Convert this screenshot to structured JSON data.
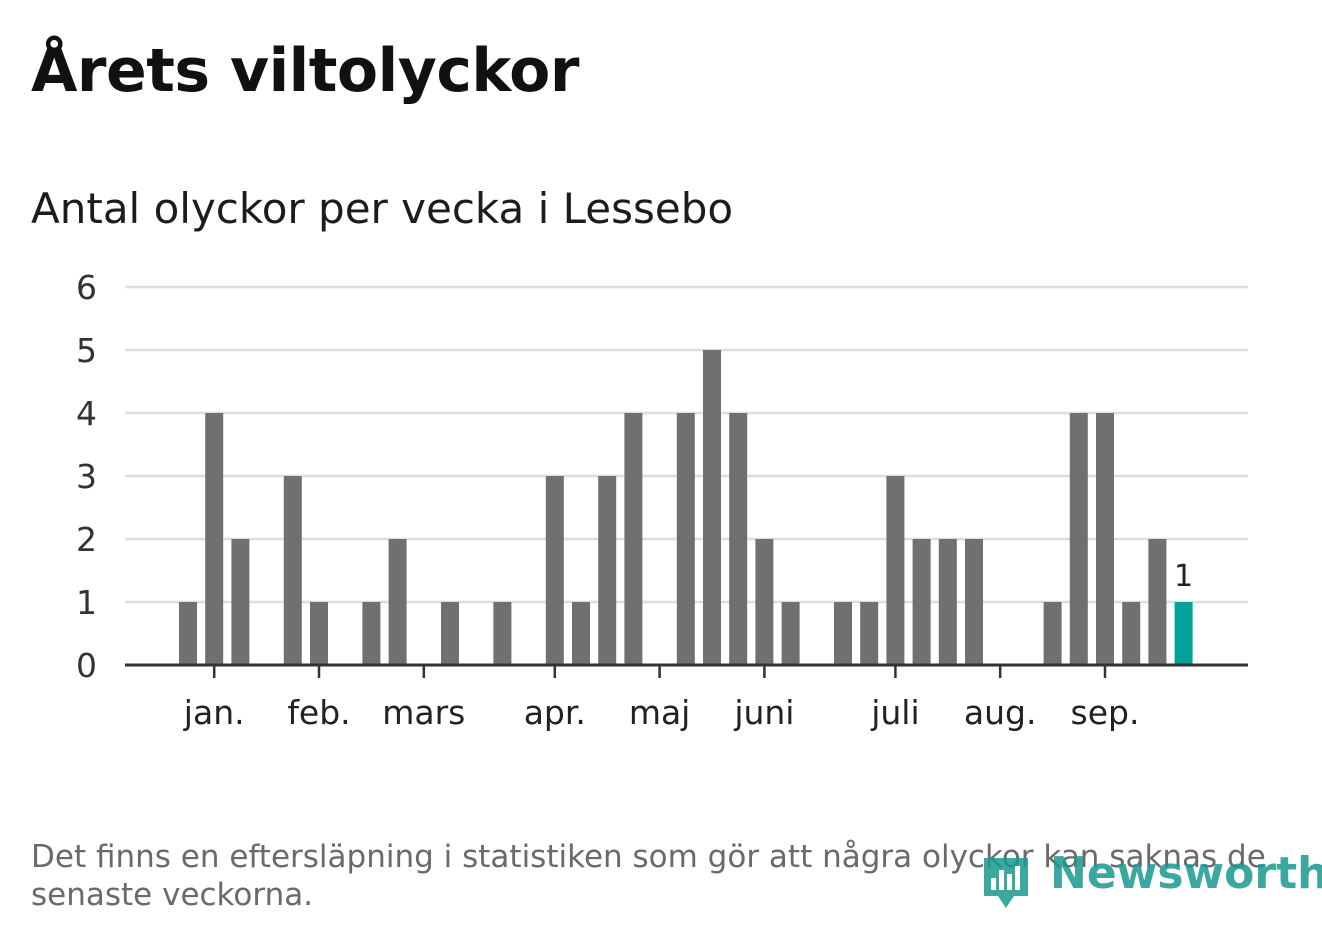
{
  "header": {
    "title": "Årets viltolyckor",
    "subtitle": "Antal olyckor per vecka i Lessebo"
  },
  "chart_data": {
    "type": "bar",
    "title": "Antal olyckor per vecka i Lessebo",
    "xlabel": "",
    "ylabel": "",
    "ylim": [
      0,
      6
    ],
    "yticks": [
      "0",
      "1",
      "2",
      "3",
      "4",
      "5",
      "6"
    ],
    "grid": true,
    "values": [
      1,
      4,
      2,
      0,
      3,
      1,
      0,
      1,
      2,
      0,
      1,
      0,
      1,
      0,
      3,
      1,
      3,
      4,
      0,
      4,
      5,
      4,
      2,
      1,
      0,
      1,
      1,
      3,
      2,
      2,
      2,
      0,
      0,
      1,
      4,
      4,
      1,
      2,
      1
    ],
    "month_ticks": [
      {
        "label": "jan.",
        "week": 1
      },
      {
        "label": "feb.",
        "week": 5
      },
      {
        "label": "mars",
        "week": 9
      },
      {
        "label": "apr.",
        "week": 14
      },
      {
        "label": "maj",
        "week": 18
      },
      {
        "label": "juni",
        "week": 22
      },
      {
        "label": "juli",
        "week": 27
      },
      {
        "label": "aug.",
        "week": 31
      },
      {
        "label": "sep.",
        "week": 35
      }
    ],
    "highlight": {
      "index": 38,
      "label": "1"
    },
    "colors": {
      "bar": "#707073",
      "highlight": "#00a39a",
      "grid": "#dddddd",
      "axis": "#333333"
    }
  },
  "footer": {
    "note": "Det finns en eftersläpning i statistiken som gör att några olyckor kan saknas de senaste veckorna.",
    "brand": "Newsworthy"
  }
}
